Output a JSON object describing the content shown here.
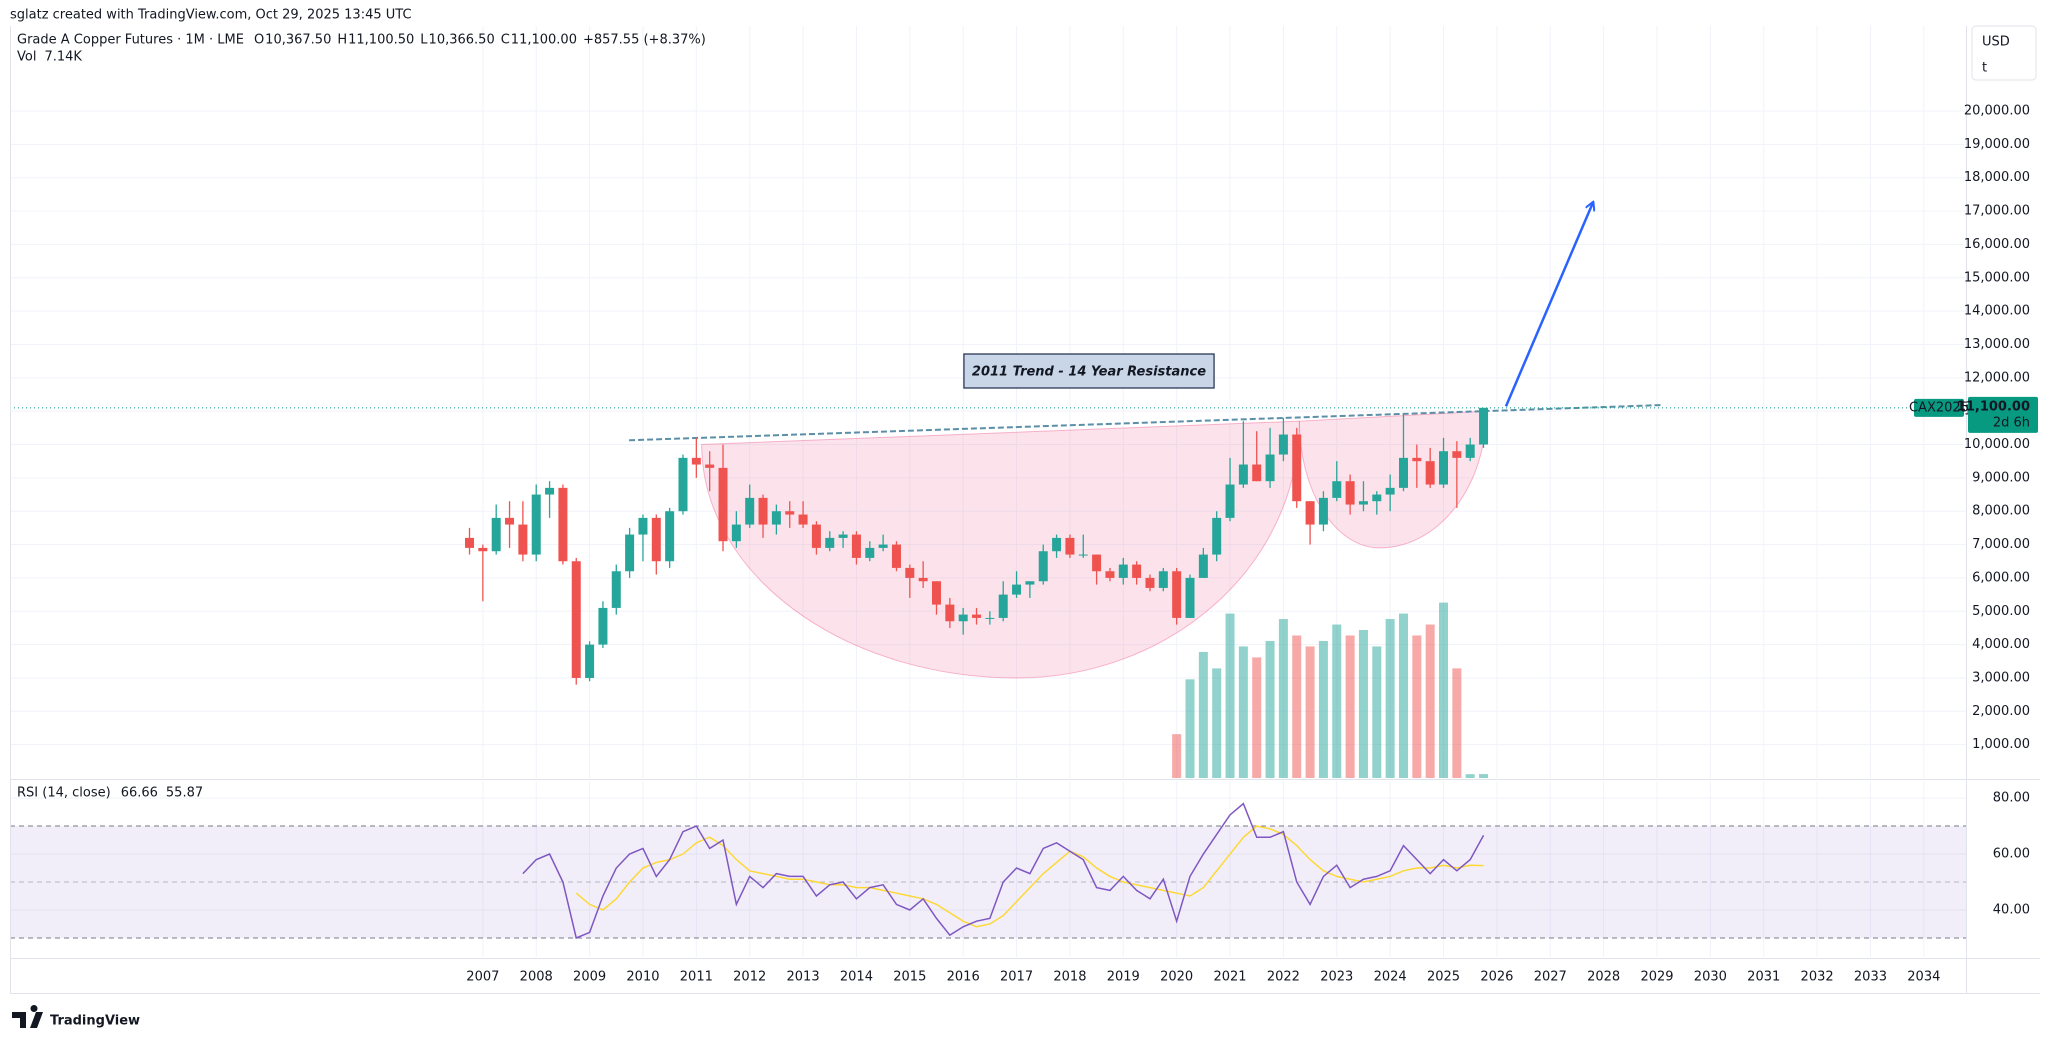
{
  "chart_data": {
    "type": "candlestick",
    "attribution": "sglatz created with TradingView.com, Oct 29, 2025 13:45 UTC",
    "title": "Grade A Copper Futures · 1M · LME",
    "ohlc_legend": [
      {
        "key": "O",
        "value": "10,367.50"
      },
      {
        "key": "H",
        "value": "11,100.50"
      },
      {
        "key": "L",
        "value": "10,366.50"
      },
      {
        "key": "C",
        "value": "11,100.00"
      }
    ],
    "change": "+857.55 (+8.37%)",
    "currency": "USD",
    "unit": "t",
    "brand": "TradingView",
    "up_color": "#26a69a",
    "down_color": "#ef5350",
    "x": [
      2006.75,
      2007,
      2007.25,
      2007.5,
      2007.75,
      2008,
      2008.25,
      2008.5,
      2008.75,
      2009,
      2009.25,
      2009.5,
      2009.75,
      2010,
      2010.25,
      2010.5,
      2010.75,
      2011,
      2011.25,
      2011.5,
      2011.75,
      2012,
      2012.25,
      2012.5,
      2012.75,
      2013,
      2013.25,
      2013.5,
      2013.75,
      2014,
      2014.25,
      2014.5,
      2014.75,
      2015,
      2015.25,
      2015.5,
      2015.75,
      2016,
      2016.25,
      2016.5,
      2016.75,
      2017,
      2017.25,
      2017.5,
      2017.75,
      2018,
      2018.25,
      2018.5,
      2018.75,
      2019,
      2019.25,
      2019.5,
      2019.75,
      2020,
      2020.25,
      2020.5,
      2020.75,
      2021,
      2021.25,
      2021.5,
      2021.75,
      2022,
      2022.25,
      2022.5,
      2022.75,
      2023,
      2023.25,
      2023.5,
      2023.75,
      2024,
      2024.25,
      2024.5,
      2024.75,
      2025,
      2025.25,
      2025.5,
      2025.75
    ],
    "open": [
      7200,
      6900,
      6800,
      7800,
      7600,
      6700,
      8500,
      8700,
      6500,
      3000,
      4000,
      5100,
      6200,
      7300,
      7800,
      6500,
      8000,
      9600,
      9400,
      9300,
      7100,
      7600,
      8400,
      7600,
      8000,
      7900,
      7600,
      6900,
      7200,
      7300,
      6600,
      6900,
      7000,
      6300,
      6000,
      5900,
      5200,
      4700,
      4900,
      4800,
      4800,
      5500,
      5800,
      5900,
      6800,
      7200,
      6700,
      6700,
      6200,
      6000,
      6400,
      6000,
      5700,
      6200,
      4800,
      6000,
      6700,
      7800,
      8800,
      9400,
      8900,
      9700,
      10300,
      8300,
      7600,
      8400,
      8900,
      8200,
      8300,
      8500,
      8700,
      9600,
      9500,
      8800,
      9800,
      9600,
      10000
    ],
    "high": [
      7500,
      7000,
      8200,
      8300,
      8300,
      8800,
      8900,
      8800,
      6600,
      4100,
      5300,
      6400,
      7500,
      7900,
      7900,
      8100,
      9700,
      10200,
      9800,
      10000,
      8000,
      8800,
      8500,
      8200,
      8300,
      8300,
      7700,
      7400,
      7400,
      7400,
      7100,
      7300,
      7100,
      6400,
      6500,
      5900,
      5400,
      5100,
      5100,
      5000,
      5900,
      6200,
      5900,
      7000,
      7300,
      7300,
      7300,
      6700,
      6300,
      6600,
      6500,
      6100,
      6300,
      6300,
      6100,
      6900,
      8000,
      9600,
      10700,
      10400,
      10500,
      10800,
      10500,
      8300,
      8600,
      9500,
      9100,
      8900,
      8600,
      9100,
      10900,
      10000,
      9900,
      10200,
      10100,
      10200,
      11100
    ],
    "low": [
      6700,
      5300,
      6700,
      6900,
      6500,
      6500,
      7800,
      6400,
      2800,
      2900,
      3900,
      4900,
      6000,
      6500,
      6100,
      6300,
      7900,
      9000,
      8600,
      6800,
      6900,
      7500,
      7200,
      7300,
      7500,
      7500,
      6700,
      6800,
      6900,
      6400,
      6500,
      6800,
      6200,
      5400,
      5700,
      4900,
      4500,
      4300,
      4600,
      4600,
      4700,
      5400,
      5400,
      5800,
      6600,
      6600,
      6600,
      5800,
      5900,
      5800,
      5800,
      5600,
      5600,
      4600,
      4800,
      6000,
      6500,
      7700,
      8700,
      8900,
      8700,
      9500,
      8100,
      7000,
      7400,
      8300,
      7900,
      8000,
      7900,
      8000,
      8600,
      8700,
      8700,
      8700,
      8100,
      9500,
      9900
    ],
    "close": [
      6900,
      6800,
      7800,
      7600,
      6700,
      8500,
      8700,
      6500,
      3000,
      4000,
      5100,
      6200,
      7300,
      7800,
      6500,
      8000,
      9600,
      9400,
      9300,
      7100,
      7600,
      8400,
      7600,
      8000,
      7900,
      7600,
      6900,
      7200,
      7300,
      6600,
      6900,
      7000,
      6300,
      6000,
      5900,
      5200,
      4700,
      4900,
      4800,
      4800,
      5500,
      5800,
      5900,
      6800,
      7200,
      6700,
      6700,
      6200,
      6000,
      6400,
      6000,
      5700,
      6200,
      4800,
      6000,
      6700,
      7800,
      8800,
      9400,
      8900,
      9700,
      10300,
      8300,
      7600,
      8400,
      8900,
      8200,
      8300,
      8500,
      8700,
      9600,
      9500,
      8800,
      9800,
      9600,
      10000,
      11100
    ],
    "xlim": [
      1998.14,
      2034.79
    ],
    "xticks": [
      2007,
      2008,
      2009,
      2010,
      2011,
      2012,
      2013,
      2014,
      2015,
      2016,
      2017,
      2018,
      2019,
      2020,
      2021,
      2022,
      2023,
      2024,
      2025,
      2026,
      2027,
      2028,
      2029,
      2030,
      2031,
      2032,
      2033,
      2034
    ],
    "ylim": [
      0,
      22550
    ],
    "yticks": [
      {
        "value": 1000,
        "label": "1,000.00"
      },
      {
        "value": 2000,
        "label": "2,000.00"
      },
      {
        "value": 3000,
        "label": "3,000.00"
      },
      {
        "value": 4000,
        "label": "4,000.00"
      },
      {
        "value": 5000,
        "label": "5,000.00"
      },
      {
        "value": 6000,
        "label": "6,000.00"
      },
      {
        "value": 7000,
        "label": "7,000.00"
      },
      {
        "value": 8000,
        "label": "8,000.00"
      },
      {
        "value": 9000,
        "label": "9,000.00"
      },
      {
        "value": 10000,
        "label": "10,000.00"
      },
      {
        "value": 11000,
        "label": "11,000.00"
      },
      {
        "value": 12000,
        "label": "12,000.00"
      },
      {
        "value": 13000,
        "label": "13,000.00"
      },
      {
        "value": 14000,
        "label": "14,000.00"
      },
      {
        "value": 15000,
        "label": "15,000.00"
      },
      {
        "value": 16000,
        "label": "16,000.00"
      },
      {
        "value": 17000,
        "label": "17,000.00"
      },
      {
        "value": 18000,
        "label": "18,000.00"
      },
      {
        "value": 19000,
        "label": "19,000.00"
      },
      {
        "value": 20000,
        "label": "20,000.00"
      }
    ],
    "grid": true,
    "last_price": {
      "value": 11100,
      "label": "11,100.00"
    },
    "last_price_color": "#089981",
    "symbol_tag": "CAX2025",
    "countdown": "2d 6h",
    "volume": {
      "name": "Vol",
      "value_label": "7.14K",
      "x": [
        2020,
        2020.25,
        2020.5,
        2020.75,
        2021,
        2021.25,
        2021.5,
        2021.75,
        2022,
        2022.25,
        2022.5,
        2022.75,
        2023,
        2023.25,
        2023.5,
        2023.75,
        2024,
        2024.25,
        2024.5,
        2024.75,
        2025,
        2025.25,
        2025.5,
        2025.75
      ],
      "values": [
        80000,
        180000,
        230000,
        200000,
        300000,
        240000,
        220000,
        250000,
        290000,
        260000,
        240000,
        250000,
        280000,
        260000,
        270000,
        240000,
        290000,
        300000,
        260000,
        280000,
        320000,
        200000,
        7000,
        7140
      ],
      "ylim": [
        0,
        1372000
      ]
    },
    "rsi": {
      "title": "RSI (14, close)",
      "x": [
        2007.75,
        2008,
        2008.25,
        2008.5,
        2008.75,
        2009,
        2009.25,
        2009.5,
        2009.75,
        2010,
        2010.25,
        2010.5,
        2010.75,
        2011,
        2011.25,
        2011.5,
        2011.75,
        2012,
        2012.25,
        2012.5,
        2012.75,
        2013,
        2013.25,
        2013.5,
        2013.75,
        2014,
        2014.25,
        2014.5,
        2014.75,
        2015,
        2015.25,
        2015.5,
        2015.75,
        2016,
        2016.25,
        2016.5,
        2016.75,
        2017,
        2017.25,
        2017.5,
        2017.75,
        2018,
        2018.25,
        2018.5,
        2018.75,
        2019,
        2019.25,
        2019.5,
        2019.75,
        2020,
        2020.25,
        2020.5,
        2020.75,
        2021,
        2021.25,
        2021.5,
        2021.75,
        2022,
        2022.25,
        2022.5,
        2022.75,
        2023,
        2023.25,
        2023.5,
        2023.75,
        2024,
        2024.25,
        2024.5,
        2024.75,
        2025,
        2025.25,
        2025.5,
        2025.75
      ],
      "series": [
        {
          "color": "#7e57c2",
          "value_label": "66.66",
          "values": [
            53,
            58,
            60,
            50,
            30,
            32,
            45,
            55,
            60,
            62,
            52,
            58,
            68,
            70,
            62,
            65,
            42,
            52,
            48,
            53,
            52,
            52,
            45,
            49,
            50,
            44,
            48,
            49,
            42,
            40,
            44,
            37,
            31,
            34,
            36,
            37,
            50,
            55,
            53,
            62,
            64,
            61,
            58,
            48,
            47,
            52,
            47,
            44,
            51,
            36,
            52,
            60,
            67,
            74,
            78,
            66,
            66,
            68,
            50,
            42,
            52,
            56,
            48,
            51,
            52,
            54,
            63,
            58,
            53,
            58,
            54,
            58,
            66.66
          ]
        },
        {
          "color": "#fdd835",
          "value_label": "55.87",
          "values": [
            null,
            null,
            null,
            null,
            46,
            42,
            40,
            44,
            50,
            55,
            57,
            58,
            60,
            64,
            66,
            63,
            58,
            54,
            53,
            52,
            51,
            51,
            50,
            49,
            49,
            48,
            48,
            47,
            46,
            45,
            44,
            42,
            39,
            36,
            34,
            35,
            38,
            43,
            48,
            53,
            57,
            61,
            59,
            55,
            52,
            50,
            49,
            48,
            47,
            46,
            45,
            48,
            54,
            60,
            66,
            70,
            69,
            67,
            63,
            58,
            54,
            52,
            51,
            50,
            51,
            52,
            54,
            55,
            55,
            56,
            55,
            56,
            55.87
          ]
        }
      ],
      "ylim": [
        23.2,
        86.1
      ],
      "yticks": [
        {
          "value": 40,
          "label": "40.00"
        },
        {
          "value": 60,
          "label": "60.00"
        },
        {
          "value": 80,
          "label": "80.00"
        }
      ],
      "bands": [
        30,
        70
      ],
      "midline": 50
    },
    "annotation": "2011 Trend - 14 Year Resistance",
    "drawings": {
      "trendline": {
        "x": [
          2009.74,
          2029.1
        ],
        "y": [
          10127,
          11184
        ],
        "color": "#5b8fa8"
      },
      "arrow": {
        "x": [
          2026.17,
          2027.8
        ],
        "y": [
          11145,
          17255
        ],
        "color": "#2962ff"
      },
      "cups": [
        {
          "x": [
            2011.1,
            2017.0,
            2022.3
          ],
          "y": [
            10000,
            3000,
            10700
          ],
          "color": "#f06292"
        },
        {
          "x": [
            2022.3,
            2023.8,
            2025.8
          ],
          "y": [
            10700,
            6900,
            11000
          ],
          "color": "#f06292"
        }
      ]
    }
  }
}
